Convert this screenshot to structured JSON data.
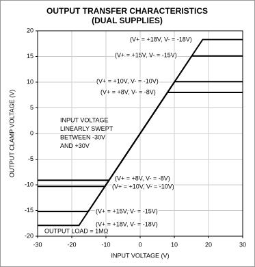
{
  "chart_data": {
    "type": "line",
    "title": "OUTPUT TRANSFER CHARACTERISTICS",
    "subtitle": "(DUAL SUPPLIES)",
    "x_label": "INPUT VOLTAGE (V)",
    "y_label": "OUTPUT CLAMP VOLTAGE (V)",
    "xlim": [
      -30,
      30
    ],
    "xticks": [
      -30,
      -20,
      -10,
      0,
      10,
      20,
      30
    ],
    "ylim": [
      -20,
      20
    ],
    "yticks": [
      -20,
      -15,
      -10,
      -5,
      0,
      5,
      10,
      15,
      20
    ],
    "grid": true,
    "series": [
      {
        "name": "(V+ = +18V, V- = -18V)",
        "color": "#000000",
        "x": [
          -30,
          -17.9,
          18.3,
          30
        ],
        "values": [
          -17.9,
          -17.9,
          18.3,
          18.3
        ]
      },
      {
        "name": "(V+ = +15V, V- = -15V)",
        "color": "#000000",
        "x": [
          -30,
          -15.2,
          15.1,
          30
        ],
        "values": [
          -15.2,
          -15.2,
          15.1,
          15.1
        ]
      },
      {
        "name": "(V+ = +10V, V- = -10V)",
        "color": "#000000",
        "x": [
          -30,
          -10.3,
          10.1,
          30
        ],
        "values": [
          -10.3,
          -10.3,
          10.1,
          10.1
        ]
      },
      {
        "name": "(V+ = +8V, V- = -8V)",
        "color": "#000000",
        "x": [
          -30,
          -9.1,
          8,
          30
        ],
        "values": [
          -9.1,
          -9.1,
          8,
          8
        ]
      }
    ],
    "annotations": [
      [
        "INPUT VOLTAGE",
        "LINEARLY SWEPT",
        "BETWEEN -30V",
        "AND +30V"
      ],
      "OUTPUT LOAD = 1MΩ"
    ]
  }
}
